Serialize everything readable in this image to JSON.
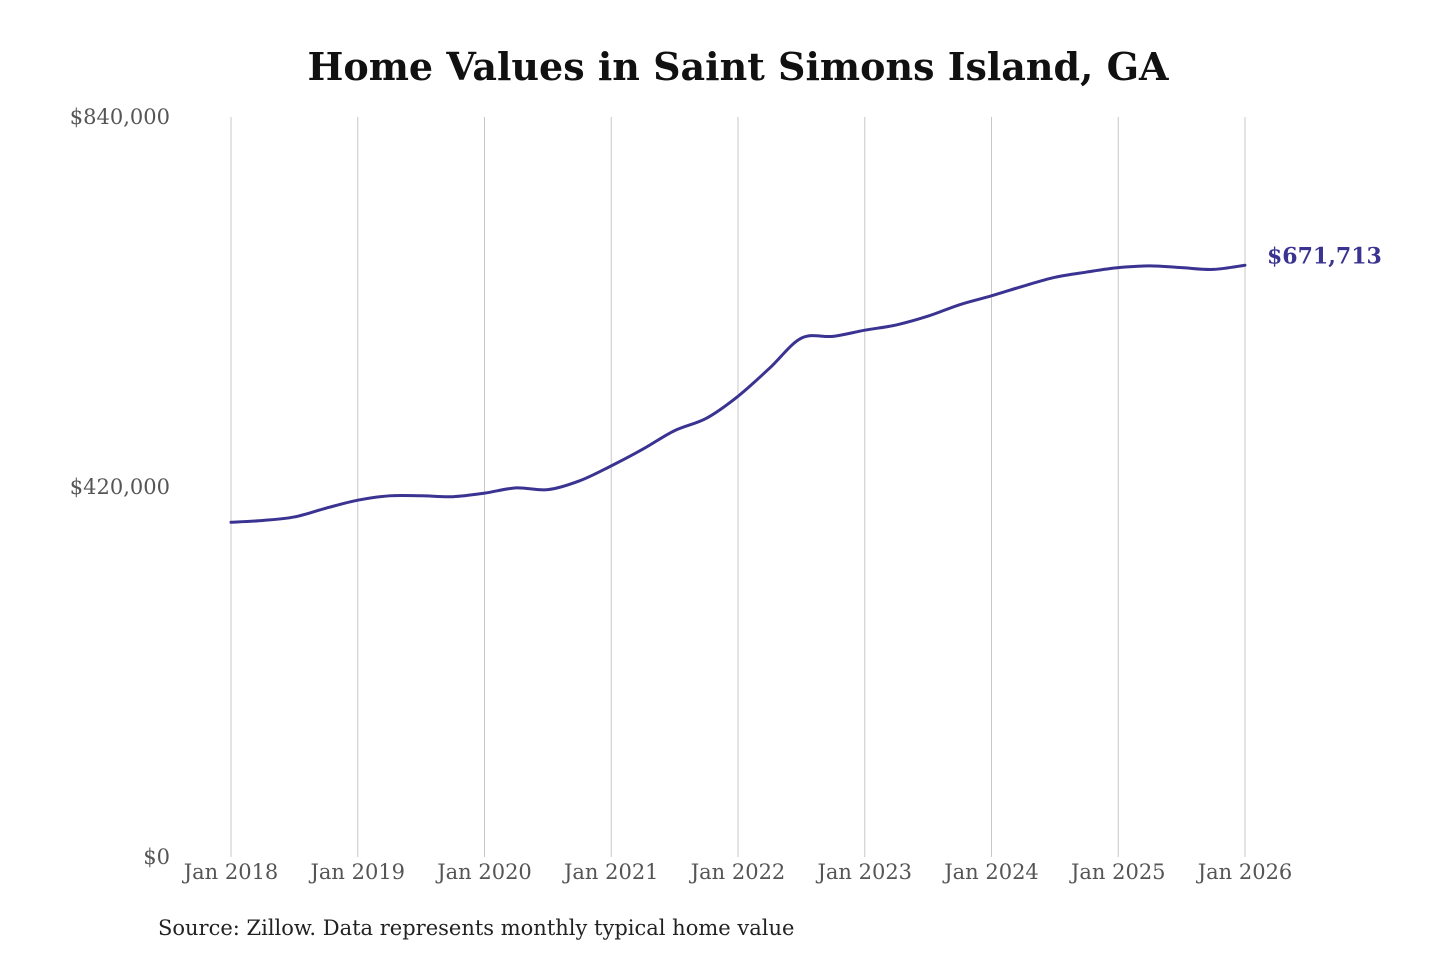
{
  "chart_data": {
    "type": "line",
    "title": "Home Values in Saint Simons Island, GA",
    "source": "Source: Zillow. Data represents monthly typical home value",
    "xlabel": "",
    "ylabel": "",
    "ylim": [
      0,
      840000
    ],
    "y_ticks": [
      "$0",
      "$420,000",
      "$840,000"
    ],
    "y_tick_values": [
      0,
      420000,
      840000
    ],
    "x_ticks": [
      "Jan 2018",
      "Jan 2019",
      "Jan 2020",
      "Jan 2021",
      "Jan 2022",
      "Jan 2023",
      "Jan 2024",
      "Jan 2025",
      "Jan 2026"
    ],
    "grid": "vertical",
    "line_color": "#3a3391",
    "end_label": "$671,713",
    "x": [
      "2018-01",
      "2018-04",
      "2018-07",
      "2018-10",
      "2019-01",
      "2019-04",
      "2019-07",
      "2019-10",
      "2020-01",
      "2020-04",
      "2020-07",
      "2020-10",
      "2021-01",
      "2021-04",
      "2021-07",
      "2021-10",
      "2022-01",
      "2022-04",
      "2022-07",
      "2022-10",
      "2023-01",
      "2023-04",
      "2023-07",
      "2023-10",
      "2024-01",
      "2024-04",
      "2024-07",
      "2024-10",
      "2025-01",
      "2025-04",
      "2025-07",
      "2025-10",
      "2026-01"
    ],
    "values": [
      380000,
      382000,
      386000,
      396000,
      405000,
      410000,
      410000,
      409000,
      413000,
      419000,
      417000,
      427000,
      444000,
      463000,
      484000,
      498000,
      523000,
      555000,
      589000,
      591000,
      598000,
      604000,
      614000,
      627000,
      637000,
      648000,
      658000,
      664000,
      669000,
      671000,
      669000,
      667000,
      671713
    ]
  }
}
